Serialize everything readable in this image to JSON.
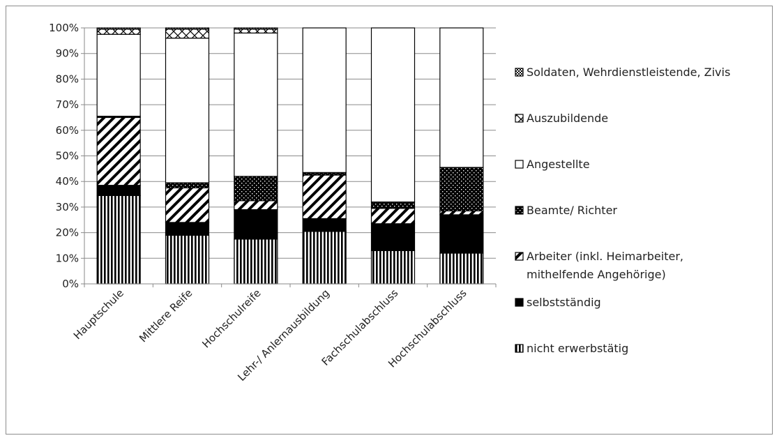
{
  "chart_data": {
    "type": "bar",
    "stacked": true,
    "percent": true,
    "title": "",
    "xlabel": "",
    "ylabel": "",
    "ylim": [
      0,
      100
    ],
    "y_ticks": [
      "0%",
      "10%",
      "20%",
      "30%",
      "40%",
      "50%",
      "60%",
      "70%",
      "80%",
      "90%",
      "100%"
    ],
    "grid": "horizontal",
    "legend_position": "right",
    "categories": [
      "Hauptschule",
      "Mittlere Reife",
      "Hochschulreife",
      "Lehr-/ Anlernausbildung",
      "Fachschulabschluss",
      "Hochschulabschluss"
    ],
    "series": [
      {
        "name": "nicht erwerbstätig",
        "pattern": "vertical-lines",
        "values": [
          34.5,
          19,
          17.5,
          20.5,
          13,
          12
        ]
      },
      {
        "name": "selbstständig",
        "pattern": "solid-black",
        "values": [
          4,
          5,
          11.5,
          5,
          10.5,
          15
        ]
      },
      {
        "name": "Arbeiter (inkl. Heimarbeiter, mithelfende Angehörige)",
        "name_lines": [
          "Arbeiter (inkl. Heimarbeiter,",
          "mithelfende Angehörige)"
        ],
        "pattern": "diagonal-lines",
        "values": [
          26.5,
          13.5,
          3.5,
          17,
          6,
          1.5
        ]
      },
      {
        "name": "Beamte/ Richter",
        "pattern": "dots",
        "values": [
          0.5,
          2,
          9.5,
          1,
          2.5,
          17
        ]
      },
      {
        "name": "Angestellte",
        "pattern": "white",
        "values": [
          32,
          56.5,
          56,
          56.5,
          68,
          54.5
        ]
      },
      {
        "name": "Auszubildende",
        "pattern": "cross-hatch",
        "values": [
          2,
          3.5,
          1.5,
          0,
          0,
          0
        ]
      },
      {
        "name": "Soldaten, Wehrdienstleistende, Zivis",
        "pattern": "checker",
        "values": [
          0.5,
          0.5,
          0.5,
          0,
          0,
          0
        ]
      }
    ]
  }
}
